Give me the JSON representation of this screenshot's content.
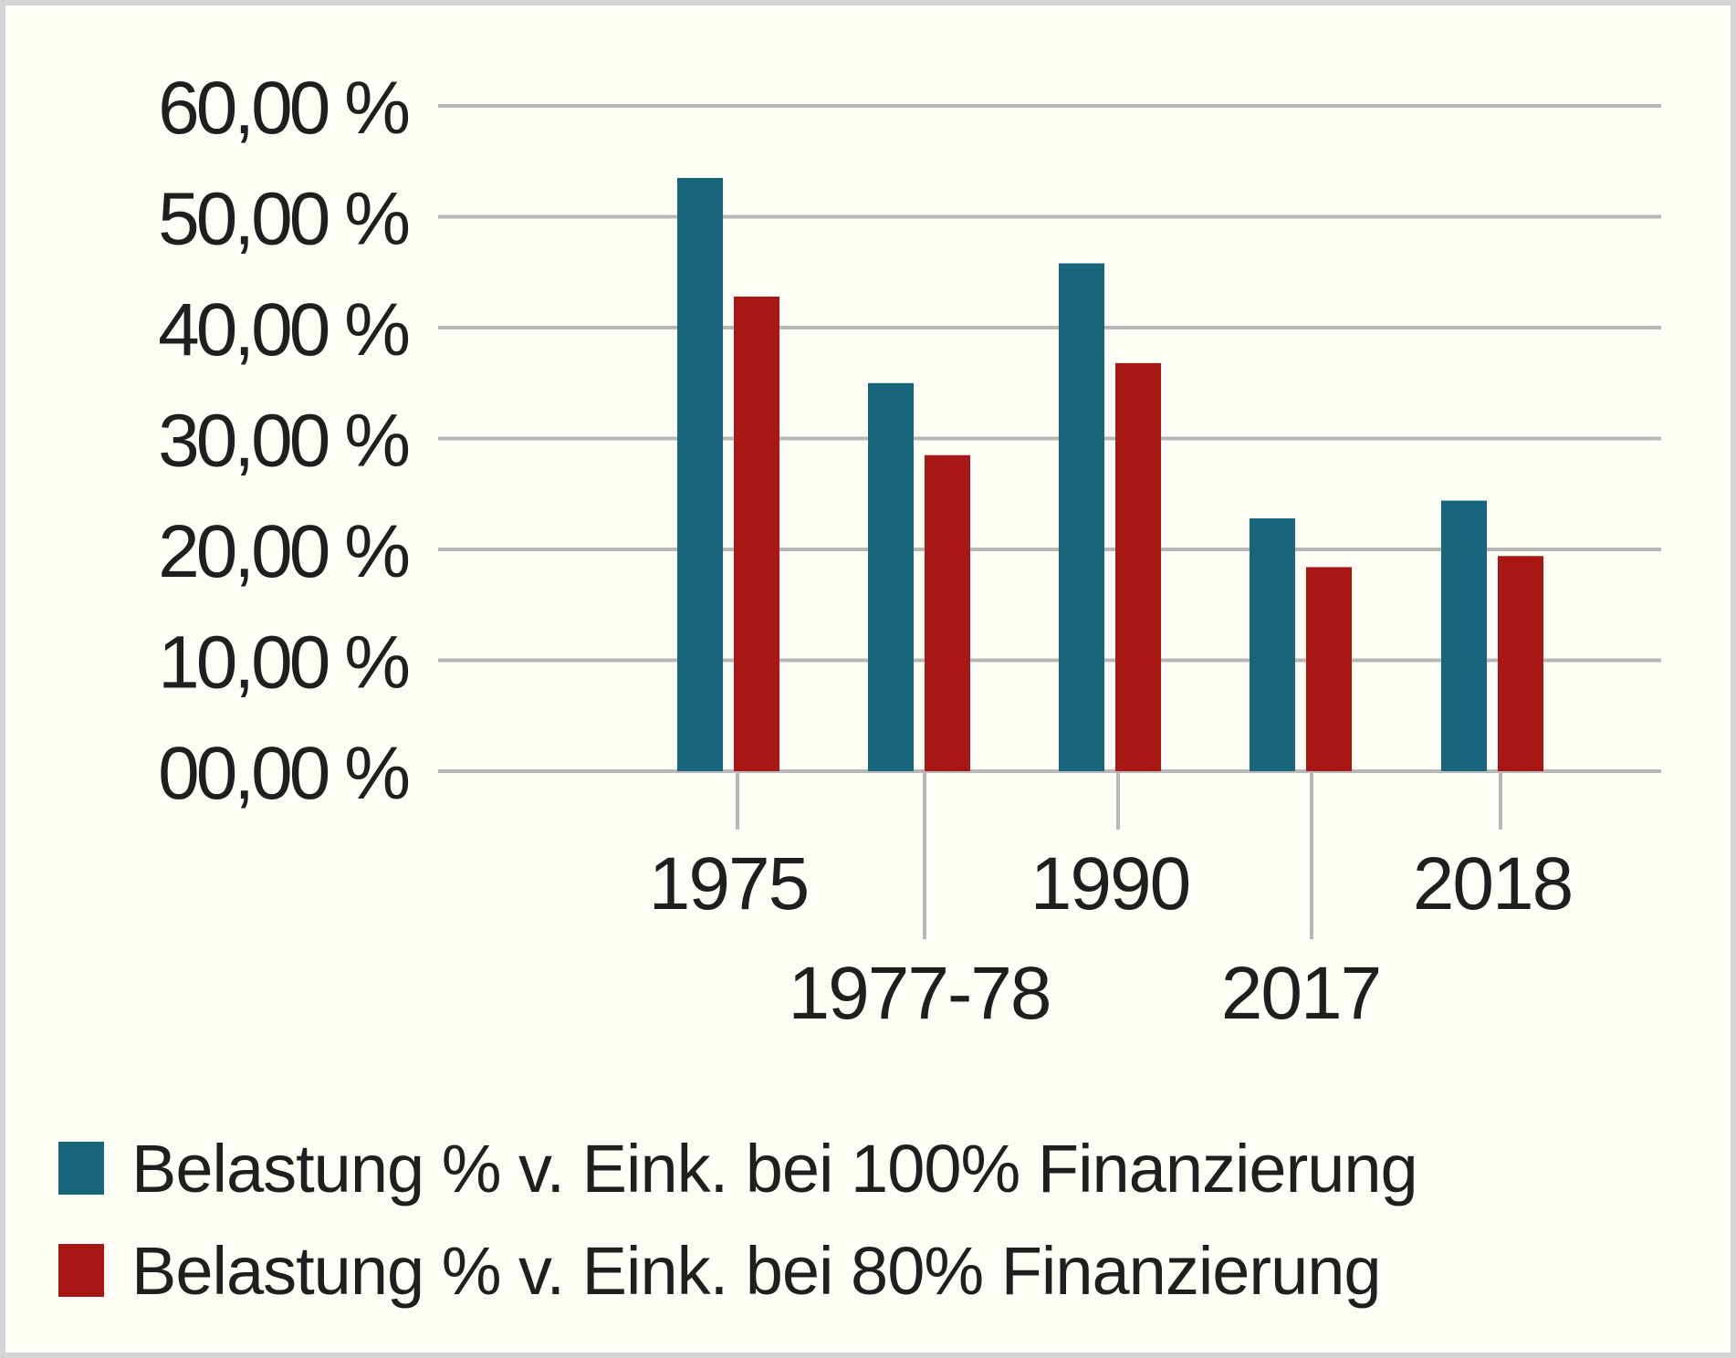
{
  "chart_data": {
    "type": "bar",
    "categories": [
      "1975",
      "1977-78",
      "1990",
      "2017",
      "2018"
    ],
    "series": [
      {
        "name": "Belastung % v. Eink. bei 100% Finanzierung",
        "color": "#17667c",
        "values": [
          53.5,
          35.0,
          45.8,
          22.8,
          24.4
        ]
      },
      {
        "name": "Belastung % v. Eink. bei 80% Finanzierung",
        "color": "#a81714",
        "values": [
          42.8,
          28.5,
          36.8,
          18.4,
          19.4
        ]
      }
    ],
    "y_ticks": [
      "00,00 %",
      "10,00 %",
      "20,00 %",
      "30,00 %",
      "40,00 %",
      "50,00 %",
      "60,00 %"
    ],
    "ylim": [
      0,
      60
    ],
    "grid": true,
    "grid_color": "#b7b7b7",
    "legend_position": "bottom-left"
  }
}
